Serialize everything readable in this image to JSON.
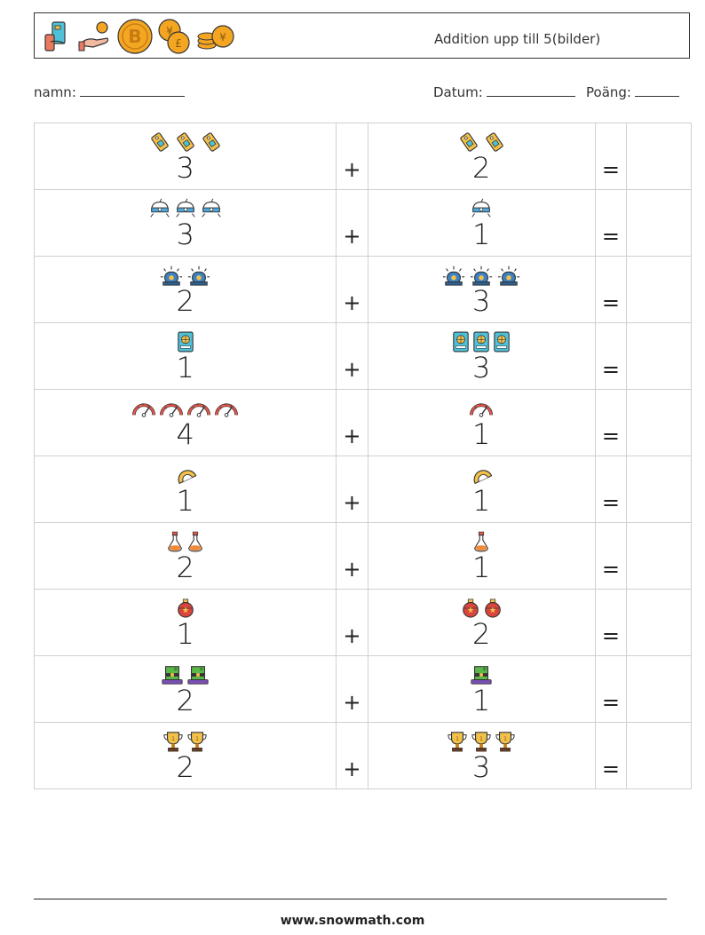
{
  "header": {
    "title": "Addition upp till 5(bilder)",
    "logo_icons": [
      "card-in-hand-icon",
      "coin-in-hand-icon",
      "bitcoin-icon",
      "yen-pound-coins-icon",
      "yen-coin-stack-icon"
    ]
  },
  "meta": {
    "name_label": "namn:",
    "date_label": "Datum:",
    "score_label": "Poäng:"
  },
  "symbols": {
    "plus": "+",
    "equals": "="
  },
  "problems": [
    {
      "left": {
        "count": 3,
        "icon": "price-tag-icon"
      },
      "right": {
        "count": 2,
        "icon": "price-tag-icon"
      }
    },
    {
      "left": {
        "count": 3,
        "icon": "robot-vacuum-icon"
      },
      "right": {
        "count": 1,
        "icon": "robot-vacuum-icon"
      }
    },
    {
      "left": {
        "count": 2,
        "icon": "alarm-siren-icon"
      },
      "right": {
        "count": 3,
        "icon": "alarm-siren-icon"
      }
    },
    {
      "left": {
        "count": 1,
        "icon": "passport-icon"
      },
      "right": {
        "count": 3,
        "icon": "passport-icon"
      }
    },
    {
      "left": {
        "count": 4,
        "icon": "speedometer-icon"
      },
      "right": {
        "count": 1,
        "icon": "speedometer-icon"
      }
    },
    {
      "left": {
        "count": 1,
        "icon": "protractor-icon"
      },
      "right": {
        "count": 1,
        "icon": "protractor-icon"
      }
    },
    {
      "left": {
        "count": 2,
        "icon": "flask-icon"
      },
      "right": {
        "count": 1,
        "icon": "flask-icon"
      }
    },
    {
      "left": {
        "count": 1,
        "icon": "ornament-icon"
      },
      "right": {
        "count": 2,
        "icon": "ornament-icon"
      }
    },
    {
      "left": {
        "count": 2,
        "icon": "leprechaun-hat-icon"
      },
      "right": {
        "count": 1,
        "icon": "leprechaun-hat-icon"
      }
    },
    {
      "left": {
        "count": 2,
        "icon": "trophy-icon"
      },
      "right": {
        "count": 3,
        "icon": "trophy-icon"
      }
    }
  ],
  "footer": {
    "url": "www.snowmath.com"
  }
}
